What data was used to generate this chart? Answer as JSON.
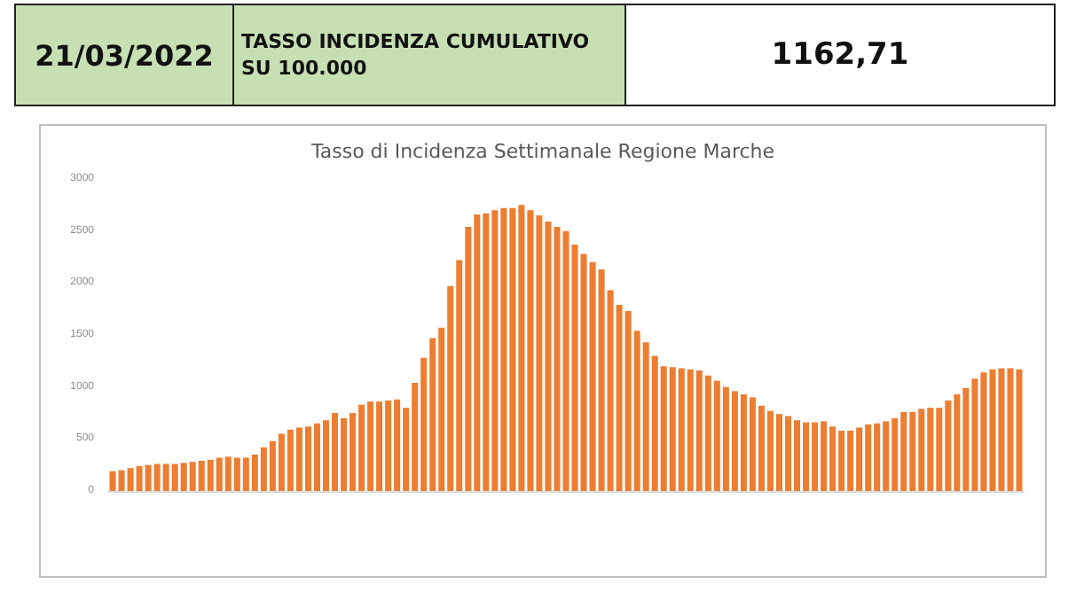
{
  "chart_data": {
    "type": "bar",
    "title": "Tasso di Incidenza Settimanale Regione Marche",
    "annotations": [
      "21/03/2022",
      "TASSO INCIDENZA CUMULATIVO SU 100.000",
      "1162,71"
    ],
    "categories": [
      null,
      null,
      null,
      null,
      null,
      null,
      null,
      null,
      null,
      null,
      null,
      null,
      null,
      null,
      null,
      null,
      null,
      null,
      null,
      null,
      null,
      null,
      null,
      null,
      null,
      null,
      null,
      null,
      null,
      null,
      null,
      null,
      null,
      null,
      null,
      null,
      null,
      null,
      null,
      null,
      null,
      null,
      null,
      null,
      null,
      null,
      null,
      null,
      null,
      null,
      null,
      null,
      null,
      null,
      null,
      null,
      null,
      null,
      null,
      null,
      null,
      null,
      null,
      null,
      null,
      null,
      null,
      null,
      null,
      null,
      null,
      null,
      null,
      null,
      null,
      null,
      null,
      null,
      null,
      null,
      null,
      null,
      null,
      null,
      null,
      null,
      null,
      null,
      null,
      null,
      null,
      null,
      null,
      null,
      null,
      null,
      null,
      null,
      null,
      null,
      null,
      null,
      null
    ],
    "values": [
      190,
      200,
      220,
      240,
      250,
      260,
      260,
      260,
      270,
      280,
      290,
      300,
      320,
      330,
      320,
      320,
      350,
      420,
      480,
      550,
      590,
      610,
      620,
      650,
      680,
      750,
      700,
      750,
      830,
      860,
      860,
      870,
      880,
      800,
      1040,
      1280,
      1470,
      1570,
      1970,
      2220,
      2540,
      2660,
      2670,
      2700,
      2720,
      2720,
      2750,
      2700,
      2650,
      2590,
      2540,
      2500,
      2370,
      2280,
      2200,
      2130,
      1930,
      1790,
      1730,
      1540,
      1430,
      1300,
      1200,
      1190,
      1180,
      1170,
      1160,
      1110,
      1060,
      1000,
      960,
      930,
      900,
      820,
      770,
      740,
      720,
      680,
      660,
      660,
      670,
      620,
      580,
      580,
      610,
      640,
      650,
      670,
      700,
      760,
      760,
      790,
      800,
      800,
      870,
      930,
      990,
      1080,
      1140,
      1170,
      1180,
      1180,
      1170
    ],
    "color": "#ed7d31",
    "ylim": [
      0,
      3000
    ],
    "yticks": [
      0,
      500,
      1000,
      1500,
      2000,
      2500,
      3000
    ],
    "grid": false
  }
}
